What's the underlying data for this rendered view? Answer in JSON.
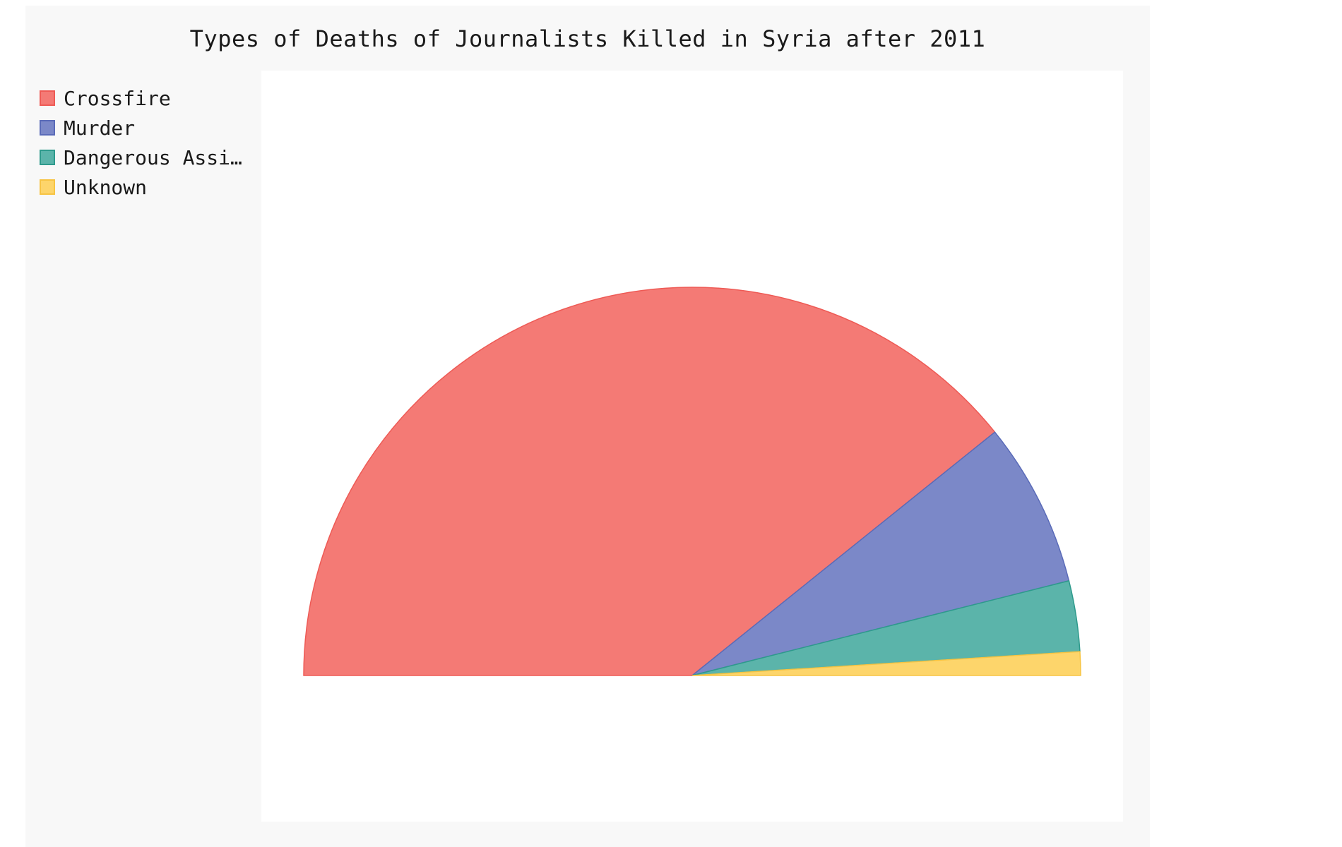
{
  "chart_data": {
    "type": "pie",
    "subtype": "half-donut",
    "title": "Types of Deaths of Journalists Killed in Syria after 2011",
    "series": [
      {
        "name": "Crossfire",
        "value": 80,
        "color": "#f47a75",
        "stroke": "#ee5a55"
      },
      {
        "name": "Murder",
        "value": 14,
        "color": "#7b88c8",
        "stroke": "#5a6bb8"
      },
      {
        "name": "Dangerous Assi…",
        "value": 6,
        "color": "#5bb4aa",
        "stroke": "#2e9a8c"
      },
      {
        "name": "Unknown",
        "value": 2,
        "color": "#fdd56b",
        "stroke": "#f7c443"
      }
    ],
    "legend_position": "top-left",
    "grid": false
  }
}
